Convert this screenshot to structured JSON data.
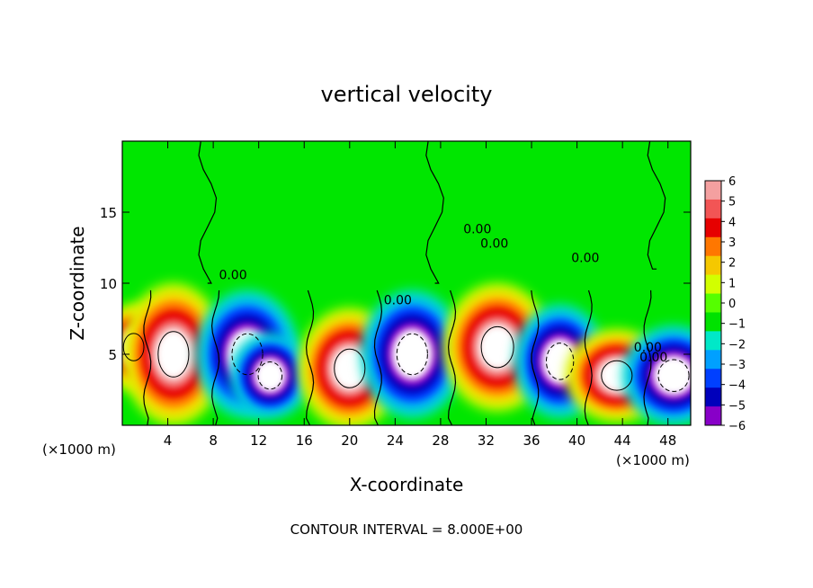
{
  "chart_data": {
    "type": "heatmap",
    "title": "vertical velocity",
    "xlabel": "X-coordinate",
    "ylabel": "Z-coordinate",
    "x_unit_left": "(×1000 m)",
    "x_unit_right": "(×1000 m)",
    "xlim": [
      0,
      50
    ],
    "ylim": [
      0,
      20
    ],
    "x_ticks": [
      4,
      8,
      12,
      16,
      20,
      24,
      28,
      32,
      36,
      40,
      44,
      48
    ],
    "x_tick_labels": [
      "4",
      "8",
      "12",
      "16",
      "20",
      "24",
      "28",
      "32",
      "36",
      "40",
      "44",
      "48"
    ],
    "y_ticks": [
      5,
      10,
      15
    ],
    "y_tick_labels": [
      "5",
      "10",
      "15"
    ],
    "colorbar": {
      "levels": [
        6,
        5,
        4,
        3,
        2,
        1,
        0,
        -1,
        -2,
        -3,
        -4,
        -5,
        -6
      ],
      "labels": [
        "6",
        "5",
        "4",
        "3",
        "2",
        "1",
        "0",
        "−1",
        "−2",
        "−3",
        "−4",
        "−5",
        "−6"
      ],
      "colors": [
        "#f4a0a0",
        "#f25555",
        "#e60000",
        "#ff7700",
        "#f5c800",
        "#d2ff00",
        "#55ff00",
        "#00e200",
        "#00e8c8",
        "#00a0ff",
        "#0040ff",
        "#0000bb",
        "#8800c8"
      ]
    },
    "contour_labels": [
      "0.00",
      "0.00",
      "0.00",
      "0.00",
      "0.00",
      "0.00",
      "0.00"
    ],
    "footer": "CONTOUR INTERVAL = 8.000E+00",
    "cells": [
      {
        "x": 1.0,
        "z": 5.5,
        "w": 6.0,
        "h": 6.0
      },
      {
        "x": 4.5,
        "z": 5.0,
        "w": 9.0,
        "h": 10.0
      },
      {
        "x": 11.0,
        "z": 5.0,
        "w": -9.0,
        "h": 9.0
      },
      {
        "x": 13.0,
        "z": 3.5,
        "w": -7.0,
        "h": 6.0
      },
      {
        "x": 20.0,
        "z": 4.0,
        "w": 9.0,
        "h": 8.5
      },
      {
        "x": 25.5,
        "z": 5.0,
        "w": -9.0,
        "h": 9.0
      },
      {
        "x": 33.0,
        "z": 5.5,
        "w": 9.5,
        "h": 9.0
      },
      {
        "x": 38.5,
        "z": 4.5,
        "w": -8.0,
        "h": 8.0
      },
      {
        "x": 43.5,
        "z": 3.5,
        "w": 9.0,
        "h": 6.5
      },
      {
        "x": 48.5,
        "z": 3.5,
        "w": -9.0,
        "h": 7.0
      }
    ]
  }
}
